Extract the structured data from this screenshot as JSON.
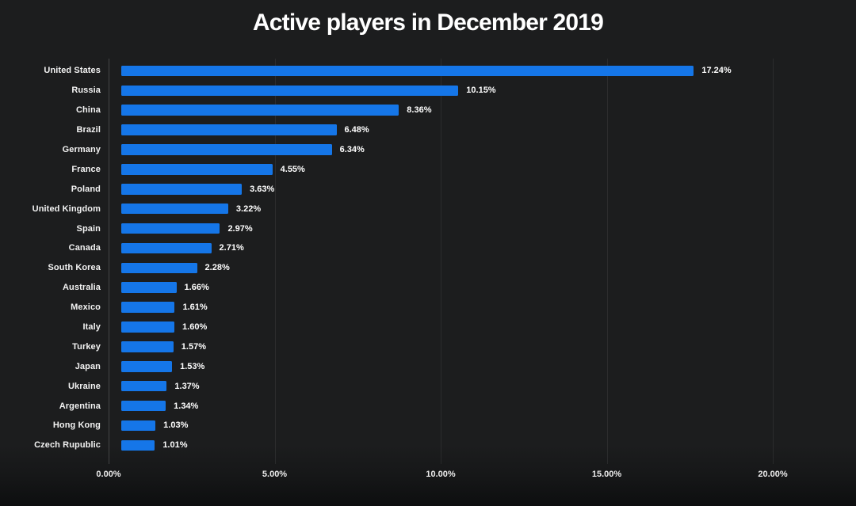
{
  "page": {
    "background_color": "#1c1d1e",
    "text_color": "#ffffff"
  },
  "chart_data": {
    "type": "bar",
    "orientation": "horizontal",
    "title": "Active players in December 2019",
    "categories": [
      "United States",
      "Russia",
      "China",
      "Brazil",
      "Germany",
      "France",
      "Poland",
      "United Kingdom",
      "Spain",
      "Canada",
      "South Korea",
      "Australia",
      "Mexico",
      "Italy",
      "Turkey",
      "Japan",
      "Ukraine",
      "Argentina",
      "Hong Kong",
      "Czech Rupublic"
    ],
    "values": [
      17.24,
      10.15,
      8.36,
      6.48,
      6.34,
      4.55,
      3.63,
      3.22,
      2.97,
      2.71,
      2.28,
      1.66,
      1.61,
      1.6,
      1.57,
      1.53,
      1.37,
      1.34,
      1.03,
      1.01
    ],
    "value_labels": [
      "17.24%",
      "10.15%",
      "8.36%",
      "6.48%",
      "6.34%",
      "4.55%",
      "3.63%",
      "3.22%",
      "2.97%",
      "2.71%",
      "2.28%",
      "1.66%",
      "1.61%",
      "1.60%",
      "1.57%",
      "1.53%",
      "1.37%",
      "1.34%",
      "1.03%",
      "1.01%"
    ],
    "xlabel": "",
    "ylabel": "",
    "x_ticks": [
      "0.00%",
      "5.00%",
      "10.00%",
      "15.00%",
      "20.00%"
    ],
    "xlim": [
      0,
      20
    ],
    "bar_color": "#1576e8",
    "grid": "vertical-only",
    "legend": "none"
  }
}
